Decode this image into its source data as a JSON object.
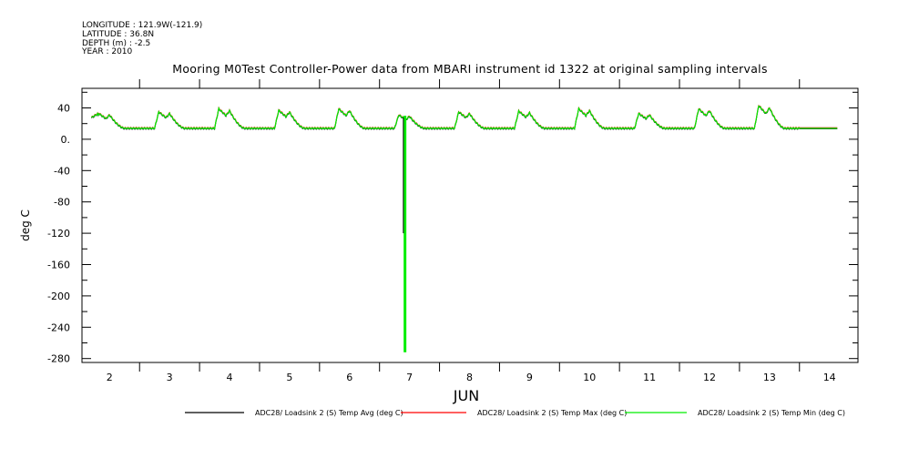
{
  "header": {
    "longitude": "LONGITUDE : 121.9W(-121.9)",
    "latitude": "LATITUDE : 36.8N",
    "depth": "DEPTH (m) : -2.5",
    "year": "YEAR : 2010"
  },
  "chart_data": {
    "type": "line",
    "title": "Mooring M0Test Controller-Power data from MBARI instrument id 1322 at original sampling intervals",
    "xlabel": "JUN",
    "ylabel": "deg C",
    "xlim": [
      1.5,
      14.7
    ],
    "ylim": [
      -285,
      65
    ],
    "x_ticks": [
      2,
      3,
      4,
      5,
      6,
      7,
      8,
      9,
      10,
      11,
      12,
      13,
      14
    ],
    "y_ticks": [
      40,
      0,
      -40,
      -80,
      -120,
      -160,
      -200,
      -240,
      -280
    ],
    "y_tick_labels": [
      "40",
      "0.",
      "-40",
      "-80",
      "-120",
      "-160",
      "-200",
      "-240",
      "-280"
    ],
    "grid": false,
    "legend_position": "bottom",
    "baseline": 14,
    "daily_peaks": [
      {
        "day": 2,
        "peak": 33
      },
      {
        "day": 3,
        "peak": 35
      },
      {
        "day": 4,
        "peak": 39
      },
      {
        "day": 5,
        "peak": 37
      },
      {
        "day": 6,
        "peak": 39
      },
      {
        "day": 7,
        "peak": 31
      },
      {
        "day": 8,
        "peak": 35
      },
      {
        "day": 9,
        "peak": 36
      },
      {
        "day": 10,
        "peak": 39
      },
      {
        "day": 11,
        "peak": 33
      },
      {
        "day": 12,
        "peak": 39
      },
      {
        "day": 13,
        "peak": 43
      }
    ],
    "spike": {
      "x": 7.42,
      "min": -272
    },
    "series": [
      {
        "name": "ADC28/ Loadsink 2 (S) Temp Avg (deg C)",
        "color": "#000000"
      },
      {
        "name": "ADC28/ Loadsink 2 (S) Temp Max (deg C)",
        "color": "#ff0000"
      },
      {
        "name": "ADC28/ Loadsink 2 (S) Temp Min (deg C)",
        "color": "#00ee00"
      }
    ]
  }
}
